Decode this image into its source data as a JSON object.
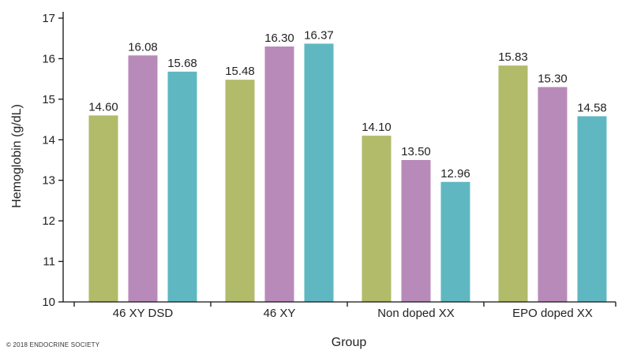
{
  "chart_data": {
    "type": "bar",
    "categories": [
      "46 XY DSD",
      "46 XY",
      "Non doped XX",
      "EPO doped XX"
    ],
    "series": [
      {
        "values": [
          14.6,
          15.48,
          14.1,
          15.83
        ],
        "color": "#b1bb69"
      },
      {
        "values": [
          16.08,
          16.3,
          13.5,
          15.3
        ],
        "color": "#b88ab9"
      },
      {
        "values": [
          15.68,
          16.37,
          12.96,
          14.58
        ],
        "color": "#5fb8c1"
      }
    ],
    "data_labels": [
      [
        "14.60",
        "15.48",
        "14.10",
        "15.83"
      ],
      [
        "16.08",
        "16.30",
        "13.50",
        "15.30"
      ],
      [
        "15.68",
        "16.37",
        "12.96",
        "14.58"
      ]
    ],
    "xlabel": "Group",
    "ylabel": "Hemoglobin (g/dL)",
    "ylim": [
      10,
      17
    ],
    "yticks": [
      "10",
      "11",
      "12",
      "13",
      "14",
      "15",
      "16",
      "17"
    ],
    "grid": false,
    "legend": "none"
  },
  "copyright": "© 2018  ENDOCRINE SOCIETY"
}
